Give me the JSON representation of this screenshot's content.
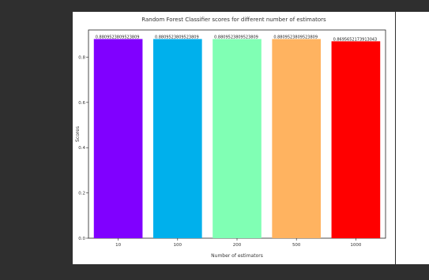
{
  "chart_data": {
    "type": "bar",
    "title": "Random Forest Classifier scores for different number of estimators",
    "xlabel": "Number of estimators",
    "ylabel": "Scores",
    "categories": [
      "10",
      "100",
      "200",
      "500",
      "1000"
    ],
    "values": [
      0.88,
      0.88,
      0.88,
      0.88,
      0.87
    ],
    "data_labels": [
      "0.8809523809523809",
      "0.8809523809523809",
      "0.8809523809523809",
      "0.8809523809523809",
      "0.8695652173913043"
    ],
    "colors": [
      "#8000ff",
      "#00b0ec",
      "#80ffb4",
      "#ffb360",
      "#ff0000"
    ],
    "yticks": [
      "0.0",
      "0.2",
      "0.4",
      "0.6",
      "0.8"
    ],
    "ylim": [
      0,
      0.92
    ],
    "grid": false,
    "legend": "none"
  }
}
